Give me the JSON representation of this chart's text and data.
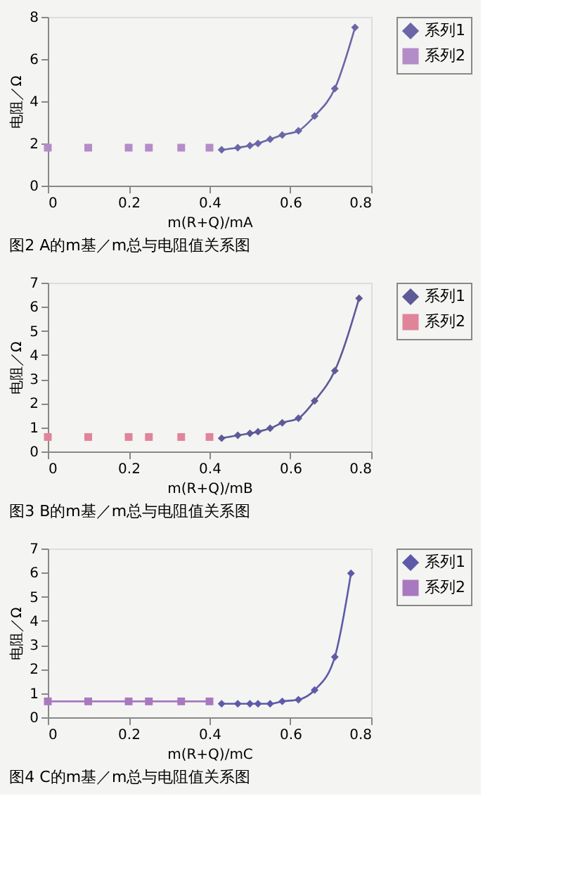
{
  "chart_data": [
    {
      "type": "line",
      "title": "图2 A的m基／m总与电阻值关系图",
      "xlabel": "m(R+Q)/mA",
      "ylabel": "电阻／Ω",
      "xlim": [
        0,
        0.8
      ],
      "xticks": [
        0,
        0.2,
        0.4,
        0.6,
        0.8
      ],
      "ylim": [
        0,
        8
      ],
      "yticks": [
        0,
        2,
        4,
        6,
        8
      ],
      "grid": false,
      "legend": "right",
      "series": [
        {
          "name": "系列1",
          "marker": "diamond",
          "color": "#6a66a8",
          "x": [
            0.43,
            0.47,
            0.5,
            0.52,
            0.55,
            0.58,
            0.62,
            0.66,
            0.71,
            0.76
          ],
          "values": [
            1.7,
            1.8,
            1.9,
            2.0,
            2.2,
            2.4,
            2.6,
            3.3,
            4.6,
            7.5
          ]
        },
        {
          "name": "系列2",
          "type": "scatter",
          "marker": "square",
          "color": "#b48cc8",
          "x": [
            0,
            0.1,
            0.2,
            0.25,
            0.33,
            0.4
          ],
          "values": [
            1.8,
            1.8,
            1.8,
            1.8,
            1.8,
            1.8
          ]
        }
      ]
    },
    {
      "type": "line",
      "title": "图3 B的m基／m总与电阻值关系图",
      "xlabel": "m(R+Q)/mB",
      "ylabel": "电阻／Ω",
      "xlim": [
        0,
        0.8
      ],
      "xticks": [
        0,
        0.2,
        0.4,
        0.6,
        0.8
      ],
      "ylim": [
        0,
        7
      ],
      "yticks": [
        0,
        1,
        2,
        3,
        4,
        5,
        6,
        7
      ],
      "grid": false,
      "legend": "right",
      "series": [
        {
          "name": "系列1",
          "marker": "diamond",
          "color": "#5e5a98",
          "x": [
            0.43,
            0.47,
            0.5,
            0.52,
            0.55,
            0.58,
            0.62,
            0.66,
            0.71,
            0.77
          ],
          "values": [
            0.55,
            0.67,
            0.75,
            0.82,
            0.96,
            1.19,
            1.38,
            2.1,
            3.35,
            6.35
          ]
        },
        {
          "name": "系列2",
          "type": "scatter",
          "marker": "square",
          "color": "#e0849a",
          "x": [
            0,
            0.1,
            0.2,
            0.25,
            0.33,
            0.4
          ],
          "values": [
            0.6,
            0.6,
            0.6,
            0.6,
            0.6,
            0.6
          ]
        }
      ]
    },
    {
      "type": "line",
      "title": "图4 C的m基／m总与电阻值关系图",
      "xlabel": "m(R+Q)/mC",
      "ylabel": "电阻／Ω",
      "xlim": [
        0,
        0.8
      ],
      "xticks": [
        0,
        0.2,
        0.4,
        0.6,
        0.8
      ],
      "ylim": [
        0,
        7
      ],
      "yticks": [
        0,
        1,
        2,
        3,
        4,
        5,
        6,
        7
      ],
      "grid": false,
      "legend": "right",
      "series": [
        {
          "name": "系列1",
          "marker": "diamond",
          "color": "#5e5aa8",
          "x": [
            0.43,
            0.47,
            0.5,
            0.52,
            0.55,
            0.58,
            0.62,
            0.66,
            0.71,
            0.75
          ],
          "values": [
            0.56,
            0.56,
            0.56,
            0.56,
            0.56,
            0.66,
            0.73,
            1.13,
            2.5,
            5.97
          ]
        },
        {
          "name": "系列2",
          "type": "line",
          "marker": "square",
          "color": "#a878c0",
          "x": [
            0,
            0.1,
            0.2,
            0.25,
            0.33,
            0.4
          ],
          "values": [
            0.66,
            0.66,
            0.66,
            0.66,
            0.66,
            0.66
          ]
        }
      ]
    }
  ]
}
